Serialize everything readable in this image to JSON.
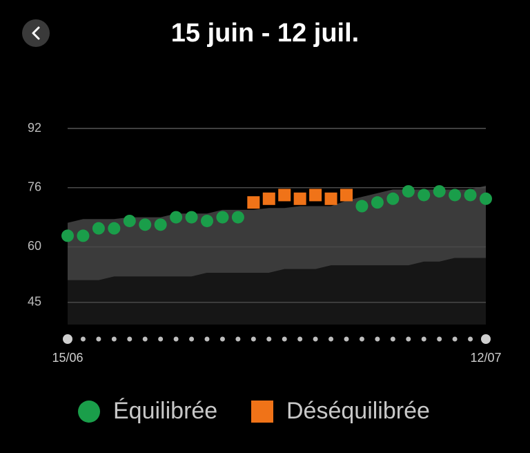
{
  "chart_data": {
    "type": "scatter",
    "title": "15 juin - 12 juil.",
    "categories": [
      "15/06",
      null,
      null,
      null,
      null,
      null,
      null,
      null,
      null,
      null,
      null,
      null,
      null,
      null,
      null,
      null,
      null,
      null,
      null,
      null,
      null,
      null,
      null,
      null,
      null,
      null,
      null,
      "12/07"
    ],
    "series": [
      {
        "name": "Équilibrée",
        "color": "#1a9e4a",
        "marker": "circle",
        "values": [
          63,
          63,
          65,
          65,
          67,
          66,
          66,
          68,
          68,
          67,
          68,
          68,
          null,
          null,
          null,
          null,
          null,
          null,
          null,
          71,
          72,
          73,
          75,
          74,
          75,
          74,
          74,
          73
        ]
      },
      {
        "name": "Déséquilibrée",
        "color": "#f07318",
        "marker": "square",
        "values": [
          null,
          null,
          null,
          null,
          null,
          null,
          null,
          null,
          null,
          null,
          null,
          null,
          72,
          73,
          74,
          73,
          74,
          73,
          74,
          null,
          null,
          null,
          null,
          null,
          null,
          null,
          null,
          null
        ]
      }
    ],
    "range": {
      "upper": [
        66.5,
        67.5,
        67.5,
        67.5,
        68,
        68,
        68,
        69,
        69,
        69,
        70,
        70,
        70,
        70.5,
        70.5,
        71,
        71,
        71,
        72.5,
        73.5,
        74.5,
        75.5,
        75.5,
        75.5,
        75.5,
        75.5,
        75.5,
        76.5
      ],
      "lower": [
        51,
        51,
        51,
        52,
        52,
        52,
        52,
        52,
        52,
        53,
        53,
        53,
        53,
        53,
        54,
        54,
        54,
        55,
        55,
        55,
        55,
        55,
        55,
        56,
        56,
        57,
        57,
        57
      ],
      "color": "#3b3b3b",
      "base_color": "#161616"
    },
    "ylim": [
      39,
      92
    ],
    "yticks": [
      45,
      60,
      76,
      92
    ],
    "grid": true
  }
}
